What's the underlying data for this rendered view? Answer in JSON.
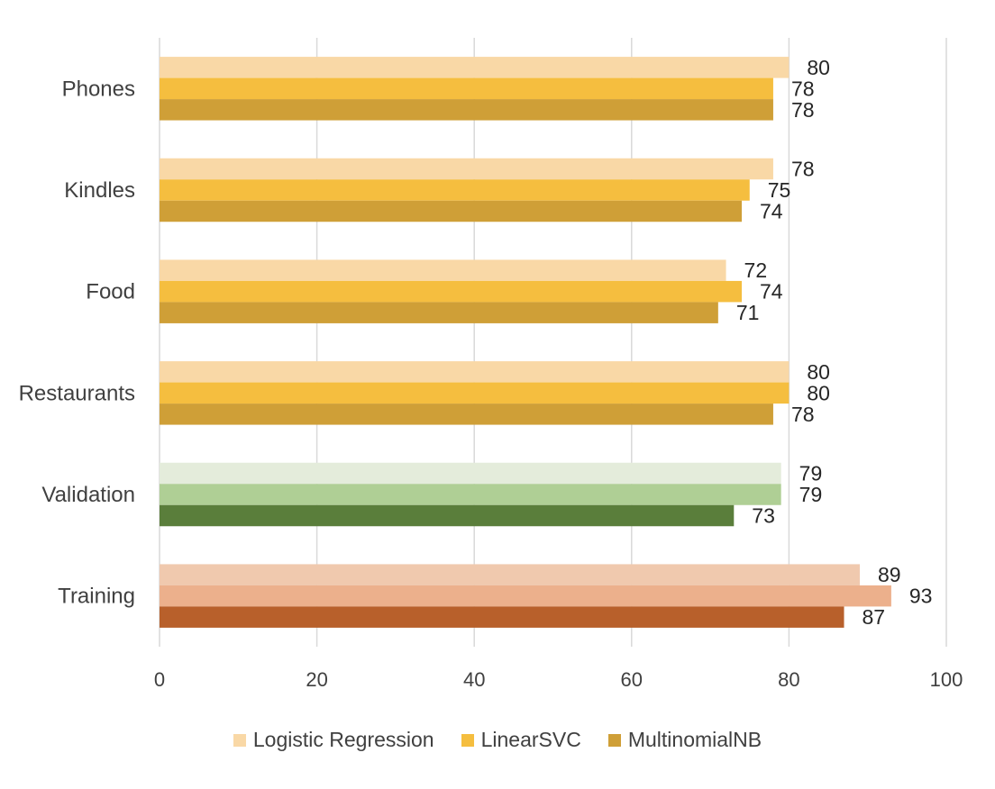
{
  "chart_data": {
    "type": "bar",
    "orientation": "horizontal",
    "categories": [
      "Phones",
      "Kindles",
      "Food",
      "Restaurants",
      "Validation",
      "Training"
    ],
    "series": [
      {
        "name": "Logistic Regression",
        "values": [
          80,
          78,
          72,
          80,
          79,
          89
        ]
      },
      {
        "name": "LinearSVC",
        "values": [
          78,
          75,
          74,
          80,
          79,
          93
        ]
      },
      {
        "name": "MultinomialNB",
        "values": [
          78,
          74,
          71,
          78,
          73,
          87
        ]
      }
    ],
    "colors": {
      "default": [
        "#F9D8A6",
        "#F5BE3F",
        "#CF9F37"
      ],
      "Validation": [
        "#E4ECDB",
        "#AFCF95",
        "#5A7E3B"
      ],
      "Training": [
        "#F0C9AE",
        "#ECB08C",
        "#B8602B"
      ]
    },
    "xlim": [
      0,
      100
    ],
    "xticks": [
      0,
      20,
      40,
      60,
      80,
      100
    ],
    "grid": true,
    "legend_position": "bottom",
    "title": "",
    "xlabel": "",
    "ylabel": ""
  }
}
